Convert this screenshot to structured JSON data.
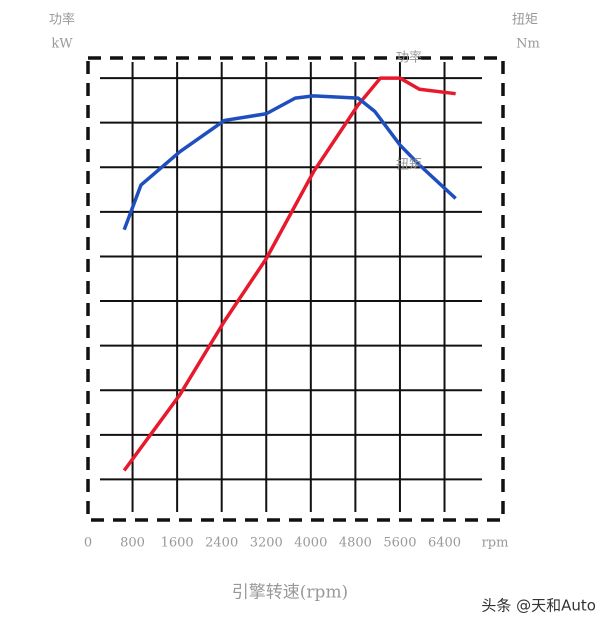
{
  "chart_data": {
    "type": "line",
    "left_axis_title": "功率",
    "left_axis_unit": "kW",
    "right_axis_title": "扭矩",
    "right_axis_unit": "Nm",
    "x_unit": "rpm",
    "x_label": "引擎转速(rpm)",
    "xlim": [
      0,
      7450
    ],
    "xticks": [
      0,
      800,
      1600,
      2400,
      3200,
      4000,
      4800,
      5600,
      6400
    ],
    "ylim": [
      0,
      10.45
    ],
    "yticks": [
      1,
      2,
      3,
      4,
      5,
      6,
      7,
      8,
      9,
      10
    ],
    "grid": true,
    "series": [
      {
        "name": "功率",
        "color": "#e8192c",
        "x": [
          650,
          1650,
          2450,
          3200,
          4050,
          4850,
          5250,
          5600,
          5950,
          6600
        ],
        "values": [
          1.2,
          2.9,
          4.55,
          5.95,
          7.9,
          9.4,
          10.0,
          10.0,
          9.75,
          9.65
        ]
      },
      {
        "name": "扭矩",
        "color": "#1f4fbf",
        "x": [
          650,
          950,
          1650,
          2450,
          3200,
          3720,
          4050,
          4850,
          5150,
          5600,
          5950,
          6600
        ],
        "values": [
          6.6,
          7.6,
          8.35,
          9.05,
          9.2,
          9.55,
          9.6,
          9.55,
          9.25,
          8.5,
          8.05,
          7.3
        ]
      }
    ]
  },
  "watermark": "头条 @天和Auto"
}
